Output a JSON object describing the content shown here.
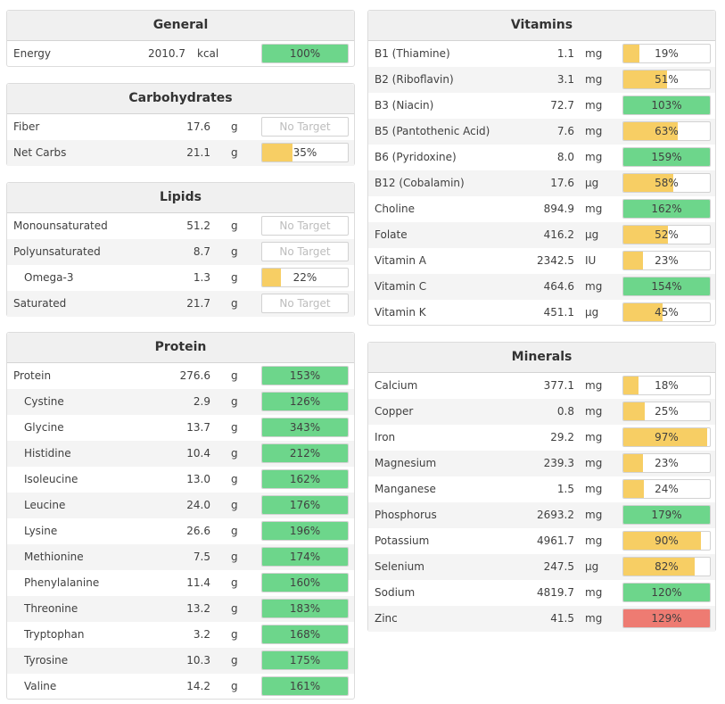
{
  "colors": {
    "green": "#6dd68b",
    "yellow": "#f7ce64",
    "red": "#ee7b72"
  },
  "panels": {
    "general": {
      "title": "General",
      "rows": [
        {
          "name": "Energy",
          "amount": "2010.7",
          "unit": "kcal",
          "percent": "100%",
          "fraction": 1.0,
          "color": "green"
        }
      ]
    },
    "carbohydrates": {
      "title": "Carbohydrates",
      "rows": [
        {
          "name": "Fiber",
          "amount": "17.6",
          "unit": "g",
          "percent": "No Target",
          "fraction": 0,
          "color": "none"
        },
        {
          "name": "Net Carbs",
          "amount": "21.1",
          "unit": "g",
          "percent": "35%",
          "fraction": 0.35,
          "color": "yellow"
        }
      ]
    },
    "lipids": {
      "title": "Lipids",
      "rows": [
        {
          "name": "Monounsaturated",
          "amount": "51.2",
          "unit": "g",
          "percent": "No Target",
          "fraction": 0,
          "color": "none"
        },
        {
          "name": "Polyunsaturated",
          "amount": "8.7",
          "unit": "g",
          "percent": "No Target",
          "fraction": 0,
          "color": "none"
        },
        {
          "name": "Omega-3",
          "amount": "1.3",
          "unit": "g",
          "percent": "22%",
          "fraction": 0.22,
          "color": "yellow",
          "sub": true
        },
        {
          "name": "Saturated",
          "amount": "21.7",
          "unit": "g",
          "percent": "No Target",
          "fraction": 0,
          "color": "none"
        }
      ]
    },
    "protein": {
      "title": "Protein",
      "rows": [
        {
          "name": "Protein",
          "amount": "276.6",
          "unit": "g",
          "percent": "153%",
          "fraction": 1.0,
          "color": "green"
        },
        {
          "name": "Cystine",
          "amount": "2.9",
          "unit": "g",
          "percent": "126%",
          "fraction": 1.0,
          "color": "green",
          "sub": true
        },
        {
          "name": "Glycine",
          "amount": "13.7",
          "unit": "g",
          "percent": "343%",
          "fraction": 1.0,
          "color": "green",
          "sub": true
        },
        {
          "name": "Histidine",
          "amount": "10.4",
          "unit": "g",
          "percent": "212%",
          "fraction": 1.0,
          "color": "green",
          "sub": true
        },
        {
          "name": "Isoleucine",
          "amount": "13.0",
          "unit": "g",
          "percent": "162%",
          "fraction": 1.0,
          "color": "green",
          "sub": true
        },
        {
          "name": "Leucine",
          "amount": "24.0",
          "unit": "g",
          "percent": "176%",
          "fraction": 1.0,
          "color": "green",
          "sub": true
        },
        {
          "name": "Lysine",
          "amount": "26.6",
          "unit": "g",
          "percent": "196%",
          "fraction": 1.0,
          "color": "green",
          "sub": true
        },
        {
          "name": "Methionine",
          "amount": "7.5",
          "unit": "g",
          "percent": "174%",
          "fraction": 1.0,
          "color": "green",
          "sub": true
        },
        {
          "name": "Phenylalanine",
          "amount": "11.4",
          "unit": "g",
          "percent": "160%",
          "fraction": 1.0,
          "color": "green",
          "sub": true
        },
        {
          "name": "Threonine",
          "amount": "13.2",
          "unit": "g",
          "percent": "183%",
          "fraction": 1.0,
          "color": "green",
          "sub": true
        },
        {
          "name": "Tryptophan",
          "amount": "3.2",
          "unit": "g",
          "percent": "168%",
          "fraction": 1.0,
          "color": "green",
          "sub": true
        },
        {
          "name": "Tyrosine",
          "amount": "10.3",
          "unit": "g",
          "percent": "175%",
          "fraction": 1.0,
          "color": "green",
          "sub": true
        },
        {
          "name": "Valine",
          "amount": "14.2",
          "unit": "g",
          "percent": "161%",
          "fraction": 1.0,
          "color": "green",
          "sub": true
        }
      ]
    },
    "vitamins": {
      "title": "Vitamins",
      "rows": [
        {
          "name": "B1 (Thiamine)",
          "amount": "1.1",
          "unit": "mg",
          "percent": "19%",
          "fraction": 0.19,
          "color": "yellow"
        },
        {
          "name": "B2 (Riboflavin)",
          "amount": "3.1",
          "unit": "mg",
          "percent": "51%",
          "fraction": 0.51,
          "color": "yellow"
        },
        {
          "name": "B3 (Niacin)",
          "amount": "72.7",
          "unit": "mg",
          "percent": "103%",
          "fraction": 1.0,
          "color": "green"
        },
        {
          "name": "B5 (Pantothenic Acid)",
          "amount": "7.6",
          "unit": "mg",
          "percent": "63%",
          "fraction": 0.63,
          "color": "yellow"
        },
        {
          "name": "B6 (Pyridoxine)",
          "amount": "8.0",
          "unit": "mg",
          "percent": "159%",
          "fraction": 1.0,
          "color": "green"
        },
        {
          "name": "B12 (Cobalamin)",
          "amount": "17.6",
          "unit": "µg",
          "percent": "58%",
          "fraction": 0.58,
          "color": "yellow"
        },
        {
          "name": "Choline",
          "amount": "894.9",
          "unit": "mg",
          "percent": "162%",
          "fraction": 1.0,
          "color": "green"
        },
        {
          "name": "Folate",
          "amount": "416.2",
          "unit": "µg",
          "percent": "52%",
          "fraction": 0.52,
          "color": "yellow"
        },
        {
          "name": "Vitamin A",
          "amount": "2342.5",
          "unit": "IU",
          "percent": "23%",
          "fraction": 0.23,
          "color": "yellow"
        },
        {
          "name": "Vitamin C",
          "amount": "464.6",
          "unit": "mg",
          "percent": "154%",
          "fraction": 1.0,
          "color": "green"
        },
        {
          "name": "Vitamin K",
          "amount": "451.1",
          "unit": "µg",
          "percent": "45%",
          "fraction": 0.45,
          "color": "yellow"
        }
      ]
    },
    "minerals": {
      "title": "Minerals",
      "rows": [
        {
          "name": "Calcium",
          "amount": "377.1",
          "unit": "mg",
          "percent": "18%",
          "fraction": 0.18,
          "color": "yellow"
        },
        {
          "name": "Copper",
          "amount": "0.8",
          "unit": "mg",
          "percent": "25%",
          "fraction": 0.25,
          "color": "yellow"
        },
        {
          "name": "Iron",
          "amount": "29.2",
          "unit": "mg",
          "percent": "97%",
          "fraction": 0.97,
          "color": "yellow"
        },
        {
          "name": "Magnesium",
          "amount": "239.3",
          "unit": "mg",
          "percent": "23%",
          "fraction": 0.23,
          "color": "yellow"
        },
        {
          "name": "Manganese",
          "amount": "1.5",
          "unit": "mg",
          "percent": "24%",
          "fraction": 0.24,
          "color": "yellow"
        },
        {
          "name": "Phosphorus",
          "amount": "2693.2",
          "unit": "mg",
          "percent": "179%",
          "fraction": 1.0,
          "color": "green"
        },
        {
          "name": "Potassium",
          "amount": "4961.7",
          "unit": "mg",
          "percent": "90%",
          "fraction": 0.9,
          "color": "yellow"
        },
        {
          "name": "Selenium",
          "amount": "247.5",
          "unit": "µg",
          "percent": "82%",
          "fraction": 0.82,
          "color": "yellow"
        },
        {
          "name": "Sodium",
          "amount": "4819.7",
          "unit": "mg",
          "percent": "120%",
          "fraction": 1.0,
          "color": "green"
        },
        {
          "name": "Zinc",
          "amount": "41.5",
          "unit": "mg",
          "percent": "129%",
          "fraction": 1.0,
          "color": "red"
        }
      ]
    }
  }
}
